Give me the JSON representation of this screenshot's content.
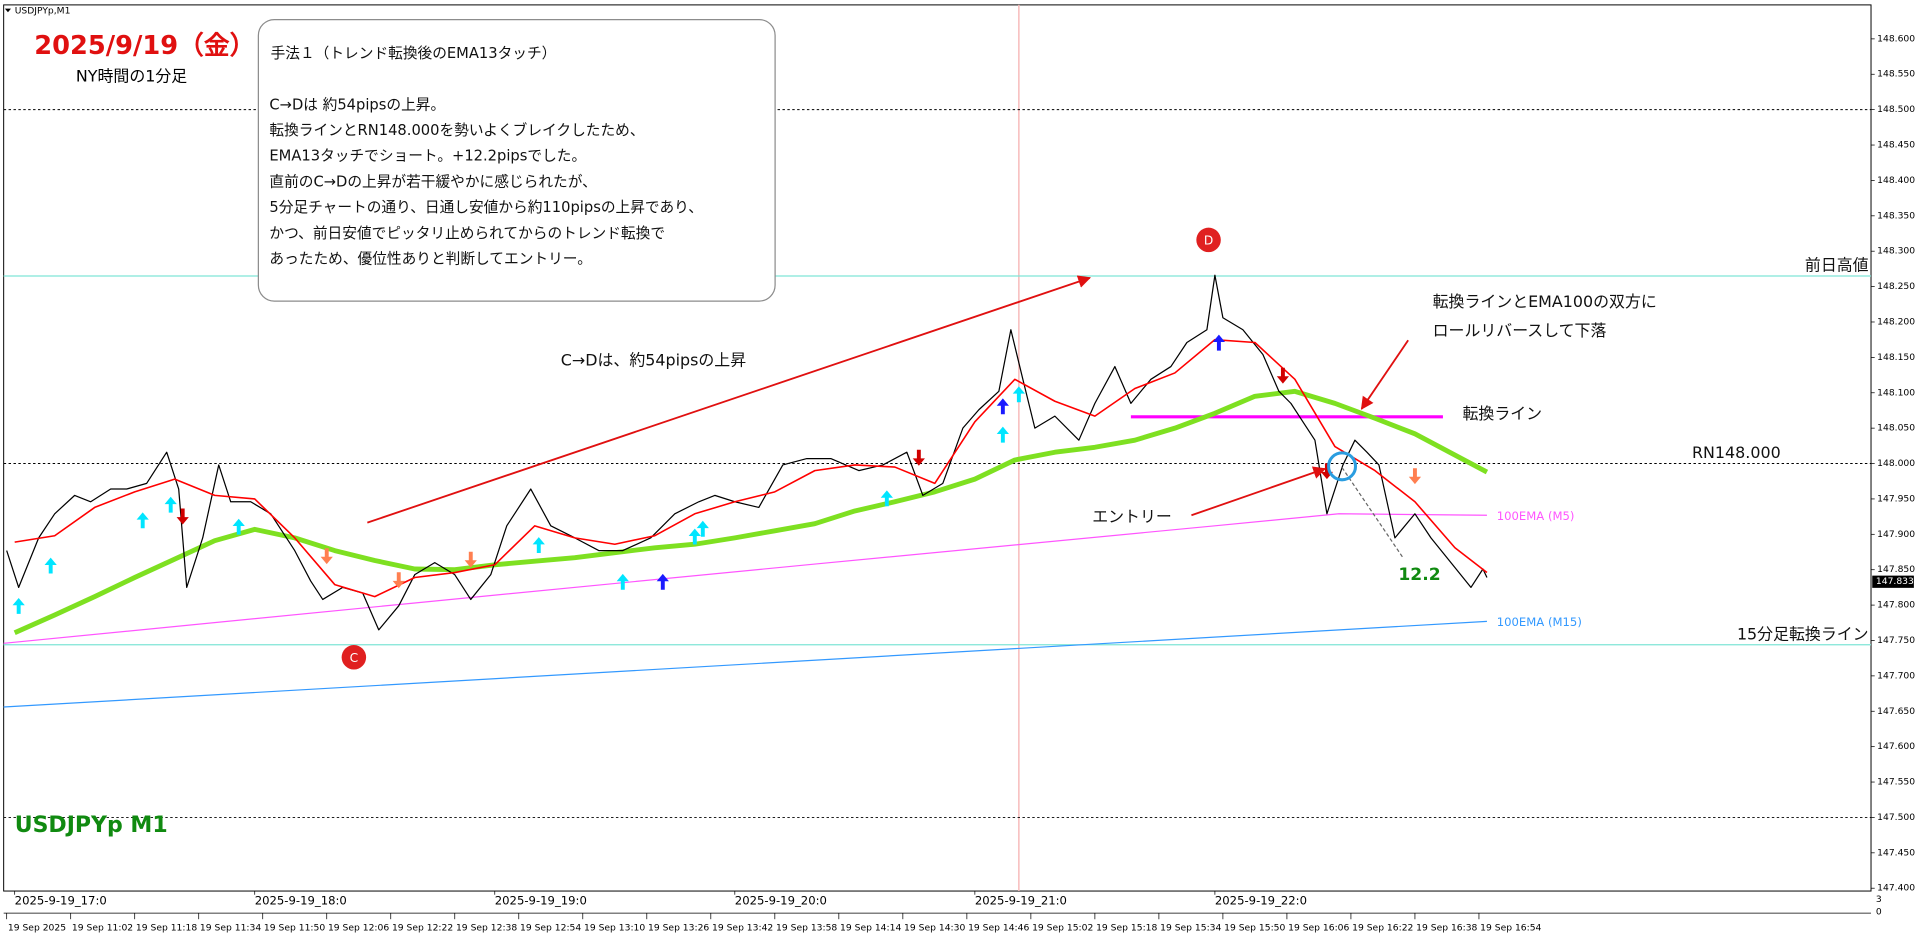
{
  "window_title": "USDJPYp,M1",
  "chart_data": {
    "type": "line",
    "title": "2025/9/19（金）",
    "subtitle": "NY時間の1分足",
    "symbol_label": "USDJPYp M1",
    "xlim": [
      -2.75,
      464
    ],
    "ylim": [
      147.396,
      148.648
    ],
    "yticks": [
      {
        "value": 147.4,
        "label": "147.400"
      },
      {
        "value": 147.45,
        "label": "147.450"
      },
      {
        "value": 147.5,
        "label": "147.500"
      },
      {
        "value": 147.55,
        "label": "147.550"
      },
      {
        "value": 147.6,
        "label": "147.600"
      },
      {
        "value": 147.65,
        "label": "147.650"
      },
      {
        "value": 147.7,
        "label": "147.700"
      },
      {
        "value": 147.75,
        "label": "147.750"
      },
      {
        "value": 147.8,
        "label": "147.800"
      },
      {
        "value": 147.85,
        "label": "147.850"
      },
      {
        "value": 147.9,
        "label": "147.900"
      },
      {
        "value": 147.95,
        "label": "147.950"
      },
      {
        "value": 148,
        "label": "148.000"
      },
      {
        "value": 148.05,
        "label": "148.050"
      },
      {
        "value": 148.1,
        "label": "148.100"
      },
      {
        "value": 148.15,
        "label": "148.150"
      },
      {
        "value": 148.2,
        "label": "148.200"
      },
      {
        "value": 148.25,
        "label": "148.250"
      },
      {
        "value": 148.3,
        "label": "148.300"
      },
      {
        "value": 148.35,
        "label": "148.350"
      },
      {
        "value": 148.4,
        "label": "148.400"
      },
      {
        "value": 148.45,
        "label": "148.450"
      },
      {
        "value": 148.5,
        "label": "148.500"
      },
      {
        "value": 148.55,
        "label": "148.550"
      },
      {
        "value": 148.6,
        "label": "148.600"
      }
    ],
    "xticks": [
      {
        "value": -2,
        "label": "19 Sep 2025"
      },
      {
        "value": 14,
        "label": "19 Sep 11:02"
      },
      {
        "value": 30,
        "label": "19 Sep 11:18"
      },
      {
        "value": 46,
        "label": "19 Sep 11:34"
      },
      {
        "value": 62,
        "label": "19 Sep 11:50"
      },
      {
        "value": 78,
        "label": "19 Sep 12:06"
      },
      {
        "value": 94,
        "label": "19 Sep 12:22"
      },
      {
        "value": 110,
        "label": "19 Sep 12:38"
      },
      {
        "value": 126,
        "label": "19 Sep 12:54"
      },
      {
        "value": 142,
        "label": "19 Sep 13:10"
      },
      {
        "value": 158,
        "label": "19 Sep 13:26"
      },
      {
        "value": 174,
        "label": "19 Sep 13:42"
      },
      {
        "value": 190,
        "label": "19 Sep 13:58"
      },
      {
        "value": 206,
        "label": "19 Sep 14:14"
      },
      {
        "value": 222,
        "label": "19 Sep 14:30"
      },
      {
        "value": 238,
        "label": "19 Sep 14:46"
      },
      {
        "value": 254,
        "label": "19 Sep 15:02"
      },
      {
        "value": 270,
        "label": "19 Sep 15:18"
      },
      {
        "value": 286,
        "label": "19 Sep 15:34"
      },
      {
        "value": 302,
        "label": "19 Sep 15:50"
      },
      {
        "value": 318,
        "label": "19 Sep 16:06"
      },
      {
        "value": 334,
        "label": "19 Sep 16:22"
      },
      {
        "value": 350,
        "label": "19 Sep 16:38"
      },
      {
        "value": 366,
        "label": "19 Sep 16:54"
      }
    ],
    "xticks_session": [
      {
        "value": 0,
        "label": "2025-9-19_17:0"
      },
      {
        "value": 60,
        "label": "2025-9-19_18:0"
      },
      {
        "value": 120,
        "label": "2025-9-19_19:0"
      },
      {
        "value": 180,
        "label": "2025-9-19_20:0"
      },
      {
        "value": 240,
        "label": "2025-9-19_21:0"
      },
      {
        "value": 300,
        "label": "2025-9-19_22:0"
      }
    ],
    "last_price": 147.833,
    "axis_corner": [
      "3",
      "0"
    ],
    "series": [
      {
        "color": "#7ee021",
        "width": 4,
        "x": [
          0,
          10,
          20,
          30,
          40,
          50,
          60,
          70,
          80,
          90,
          100,
          110,
          120,
          130,
          140,
          150,
          160,
          170,
          180,
          190,
          200,
          210,
          220,
          230,
          240,
          250,
          260,
          270,
          280,
          290,
          300,
          310,
          320,
          330,
          340,
          350,
          360,
          368
        ],
        "values": [
          147.761,
          147.786,
          147.812,
          147.839,
          147.865,
          147.891,
          147.907,
          147.895,
          147.877,
          147.863,
          147.851,
          147.85,
          147.857,
          147.862,
          147.867,
          147.874,
          147.881,
          147.886,
          147.895,
          147.905,
          147.915,
          147.933,
          147.946,
          147.96,
          147.978,
          148.005,
          148.016,
          148.023,
          148.033,
          148.05,
          148.071,
          148.095,
          148.102,
          148.085,
          148.064,
          148.042,
          148.012,
          147.988
        ]
      },
      {
        "name": "100EMA (M15)",
        "color": "#3399ff",
        "width": 1,
        "x": [
          -2.75,
          368
        ],
        "values": [
          147.656,
          147.777
        ]
      },
      {
        "name": "100EMA (M5)",
        "color": "#ff55ff",
        "width": 1,
        "x": [
          -2.75,
          100,
          200,
          300,
          331,
          368
        ],
        "values": [
          147.746,
          147.803,
          147.858,
          147.912,
          147.929,
          147.927
        ]
      },
      {
        "color": "#000000",
        "width": 1,
        "x": [
          -2,
          1,
          6,
          10,
          15,
          19,
          24,
          28,
          33,
          38,
          41,
          43,
          47,
          51,
          54,
          59,
          64,
          70,
          74,
          77,
          82,
          87,
          91,
          96,
          100,
          105,
          110,
          114,
          119,
          123,
          129,
          134,
          140,
          146,
          152,
          159,
          165,
          171,
          175,
          180,
          186,
          192,
          198,
          204,
          211,
          217,
          223,
          227,
          232,
          237,
          241,
          246,
          249,
          252,
          255,
          260,
          266,
          270,
          275,
          279,
          284,
          289,
          293,
          298,
          300,
          302,
          307,
          312,
          316,
          319,
          322,
          325,
          328,
          332,
          335,
          338,
          341,
          345,
          350,
          354,
          359,
          364,
          367,
          368
        ],
        "values": [
          147.877,
          147.825,
          147.895,
          147.929,
          147.955,
          147.946,
          147.964,
          147.964,
          147.972,
          148.016,
          147.964,
          147.825,
          147.895,
          147.998,
          147.946,
          147.946,
          147.929,
          147.877,
          147.834,
          147.808,
          147.825,
          147.817,
          147.765,
          147.799,
          147.843,
          147.86,
          147.843,
          147.808,
          147.843,
          147.912,
          147.964,
          147.912,
          147.895,
          147.877,
          147.877,
          147.895,
          147.929,
          147.946,
          147.955,
          147.946,
          147.938,
          147.998,
          148.007,
          148.007,
          147.99,
          147.998,
          148.016,
          147.955,
          147.972,
          148.05,
          148.076,
          148.102,
          148.189,
          148.119,
          148.05,
          148.067,
          148.033,
          148.085,
          148.137,
          148.085,
          148.119,
          148.137,
          148.171,
          148.189,
          148.266,
          148.206,
          148.189,
          148.154,
          148.102,
          148.085,
          148.059,
          148.033,
          147.929,
          147.998,
          148.033,
          148.016,
          147.998,
          147.895,
          147.929,
          147.895,
          147.86,
          147.825,
          147.851,
          147.839
        ]
      },
      {
        "color": "#ff0000",
        "width": 1.3,
        "x": [
          0,
          10,
          20,
          30,
          40,
          50,
          60,
          70,
          80,
          90,
          100,
          110,
          120,
          130,
          140,
          150,
          160,
          170,
          180,
          190,
          200,
          210,
          220,
          230,
          240,
          250,
          260,
          270,
          280,
          290,
          300,
          310,
          320,
          330,
          340,
          350,
          360,
          368
        ],
        "values": [
          147.889,
          147.898,
          147.938,
          147.96,
          147.978,
          147.955,
          147.95,
          147.895,
          147.829,
          147.812,
          147.839,
          147.846,
          147.857,
          147.912,
          147.895,
          147.886,
          147.898,
          147.929,
          147.946,
          147.96,
          147.99,
          147.998,
          147.995,
          147.972,
          148.059,
          148.119,
          148.088,
          148.067,
          148.106,
          148.128,
          148.175,
          148.171,
          148.119,
          148.024,
          147.99,
          147.946,
          147.881,
          147.846
        ]
      }
    ],
    "hlines": [
      {
        "value": 148.5,
        "style": "dotted",
        "color": "#000000"
      },
      {
        "value": 148,
        "style": "dotted",
        "color": "#000000",
        "label": "RN148.000"
      },
      {
        "value": 147.5,
        "style": "dotted",
        "color": "#000000"
      },
      {
        "value": 148.265,
        "style": "solid",
        "color": "#7fe5d6",
        "label": "前日高値"
      },
      {
        "value": 147.744,
        "style": "solid",
        "color": "#7fe5d6",
        "label": "15分足転換ライン"
      }
    ],
    "segments": [
      {
        "value": 148.066,
        "x": [
          279,
          357
        ],
        "color": "#ff00ff",
        "label": "転換ライン"
      }
    ],
    "vlines": [
      {
        "value": 251,
        "color": "#f7b9b9"
      }
    ],
    "signals": [
      {
        "x": 1,
        "price": 147.817,
        "color": "#00e5ff",
        "direction": "up"
      },
      {
        "x": 9,
        "price": 147.874,
        "color": "#00e5ff",
        "direction": "up"
      },
      {
        "x": 32,
        "price": 147.938,
        "color": "#00e5ff",
        "direction": "up"
      },
      {
        "x": 39,
        "price": 147.96,
        "color": "#00e5ff",
        "direction": "up"
      },
      {
        "x": 56,
        "price": 147.929,
        "color": "#00e5ff",
        "direction": "up"
      },
      {
        "x": 131,
        "price": 147.903,
        "color": "#00e5ff",
        "direction": "up"
      },
      {
        "x": 152,
        "price": 147.851,
        "color": "#00e5ff",
        "direction": "up"
      },
      {
        "x": 170,
        "price": 147.915,
        "color": "#00e5ff",
        "direction": "up"
      },
      {
        "x": 172,
        "price": 147.926,
        "color": "#00e5ff",
        "direction": "up"
      },
      {
        "x": 218,
        "price": 147.969,
        "color": "#00e5ff",
        "direction": "up"
      },
      {
        "x": 247,
        "price": 148.059,
        "color": "#00e5ff",
        "direction": "up"
      },
      {
        "x": 251,
        "price": 148.116,
        "color": "#00e5ff",
        "direction": "up"
      },
      {
        "x": 162,
        "price": 147.851,
        "color": "#1a1aff",
        "direction": "up"
      },
      {
        "x": 247,
        "price": 148.099,
        "color": "#1a1aff",
        "direction": "up"
      },
      {
        "x": 301,
        "price": 148.189,
        "color": "#1a1aff",
        "direction": "up"
      },
      {
        "x": 42,
        "price": 147.907,
        "color": "#d00000",
        "direction": "down"
      },
      {
        "x": 226,
        "price": 147.99,
        "color": "#d00000",
        "direction": "down"
      },
      {
        "x": 317,
        "price": 148.106,
        "color": "#d00000",
        "direction": "down"
      },
      {
        "x": 328,
        "price": 147.971,
        "color": "#d00000",
        "direction": "down"
      },
      {
        "x": 78,
        "price": 147.851,
        "color": "#ff7f50",
        "direction": "down"
      },
      {
        "x": 96,
        "price": 147.817,
        "color": "#ff7f50",
        "direction": "down"
      },
      {
        "x": 114,
        "price": 147.846,
        "color": "#ff7f50",
        "direction": "down"
      },
      {
        "x": 350,
        "price": 147.964,
        "color": "#ff7f50",
        "direction": "down"
      }
    ],
    "annotations": {
      "cd_rise": "C→Dは、約54pipsの上昇",
      "entry": "エントリー",
      "roll_1": "転換ラインとEMA100の双方に",
      "roll_2": "ロールリバースして下落",
      "profit": "12.2",
      "point_c": "C",
      "point_d": "D"
    },
    "box": {
      "title": "手法１（トレンド転換後のEMA13タッチ）",
      "lines": [
        "C→Dは 約54pipsの上昇。",
        "転換ラインとRN148.000を勢いよくブレイクしたため、",
        "EMA13タッチでショート。+12.2pipsでした。",
        "直前のC→Dの上昇が若干緩やかに感じられたが、",
        "5分足チャートの通り、日通し安値から約110pipsの上昇であり、",
        "かつ、前日安値でピッタリ止められてからのトレンド転換で",
        "あったため、優位性ありと判断してエントリー。"
      ]
    }
  }
}
